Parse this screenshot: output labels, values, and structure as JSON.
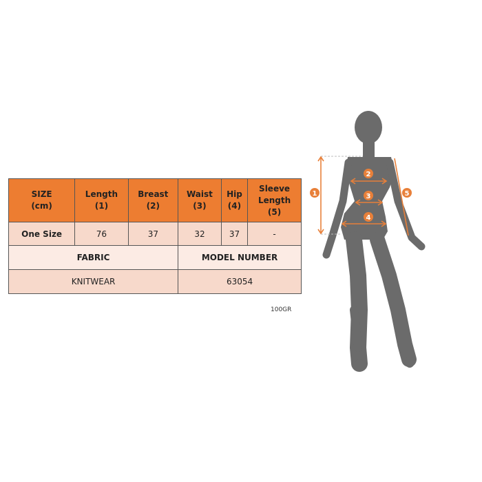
{
  "size_table": {
    "headers": [
      [
        "SIZE",
        "(cm)"
      ],
      [
        "Length",
        "(1)"
      ],
      [
        "Breast",
        "(2)"
      ],
      [
        "Waist",
        "(3)"
      ],
      [
        "Hip",
        "(4)"
      ],
      [
        "Sleeve",
        "Length",
        "(5)"
      ]
    ],
    "row": [
      "One Size",
      "76",
      "37",
      "32",
      "37",
      "-"
    ],
    "fabric_label": "FABRIC",
    "model_number_label": "MODEL NUMBER",
    "fabric_value": "KNITWEAR",
    "model_number_value": "63054"
  },
  "weight_note": "100GR",
  "figure": {
    "markers": [
      "1",
      "2",
      "3",
      "4",
      "5"
    ],
    "accent_color": "#e8803a",
    "silhouette_color": "#6b6b6b"
  }
}
